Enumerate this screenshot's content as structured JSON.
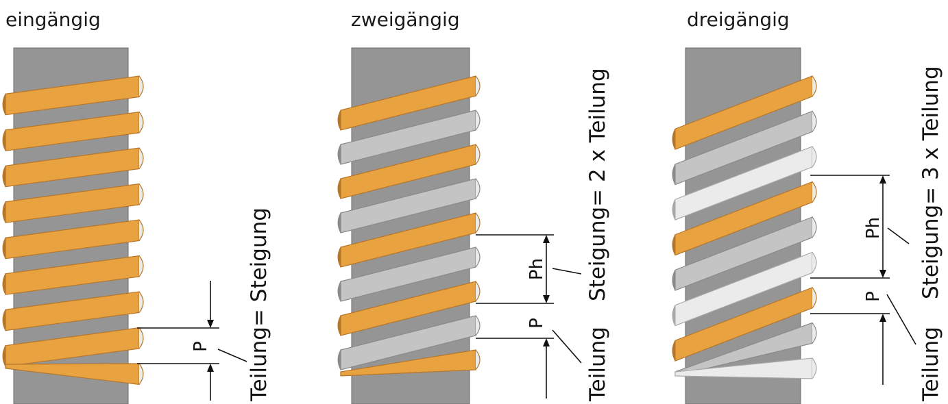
{
  "colors": {
    "core": "#959595",
    "core_edge": "#6a6a6a",
    "orange": "#e8a340",
    "orange_dark": "#b6762a",
    "gray_flight": "#c4c4c4",
    "gray_dark": "#8a8a8a",
    "white_flight": "#ebebeb",
    "white_dark": "#a9a9a9"
  },
  "panels": [
    {
      "title": "eingängig",
      "starts": 1,
      "flight_colors": [
        "orange"
      ],
      "label_p": "P",
      "label_teilung": "Teilung= Steigung"
    },
    {
      "title": "zweigängig",
      "starts": 2,
      "flight_colors": [
        "orange",
        "gray_flight"
      ],
      "label_p": "P",
      "label_ph": "Ph",
      "label_teilung": "Teilung",
      "label_steigung": "Steigung= 2 x Teilung"
    },
    {
      "title": "dreigängig",
      "starts": 3,
      "flight_colors": [
        "orange",
        "gray_flight",
        "white_flight"
      ],
      "label_p": "P",
      "label_ph": "Ph",
      "label_teilung": "Teilung",
      "label_steigung": "Steigung=  3 x Teilung"
    }
  ]
}
